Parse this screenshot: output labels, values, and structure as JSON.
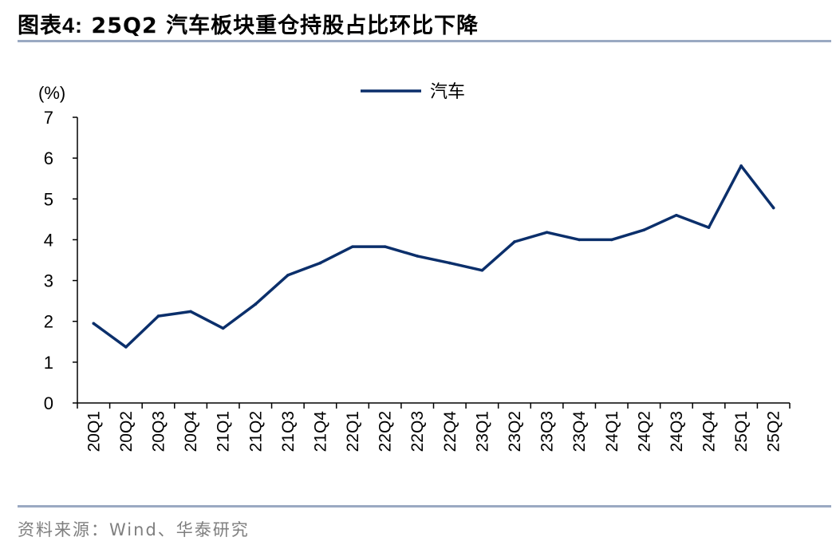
{
  "title": {
    "prefix": "图表",
    "number": "4:",
    "text": "25Q2 汽车板块重仓持股占比环比下降"
  },
  "source": "资料来源：Wind、华泰研究",
  "chart_data": {
    "type": "line",
    "ylabel": "(%)",
    "ylim": [
      0,
      7
    ],
    "yticks": [
      0,
      1,
      2,
      3,
      4,
      5,
      6,
      7
    ],
    "categories": [
      "20Q1",
      "20Q2",
      "20Q3",
      "20Q4",
      "21Q1",
      "21Q2",
      "21Q3",
      "21Q4",
      "22Q1",
      "22Q2",
      "22Q3",
      "22Q4",
      "23Q1",
      "23Q2",
      "23Q3",
      "23Q4",
      "24Q1",
      "24Q2",
      "24Q3",
      "24Q4",
      "25Q1",
      "25Q2"
    ],
    "series": [
      {
        "name": "汽车",
        "color": "#0b2f6b",
        "values": [
          1.95,
          1.37,
          2.13,
          2.24,
          1.83,
          2.42,
          3.13,
          3.43,
          3.83,
          3.83,
          3.6,
          3.43,
          3.25,
          3.95,
          4.18,
          4.0,
          4.0,
          4.24,
          4.6,
          4.3,
          5.81,
          4.78
        ]
      }
    ],
    "grid": false,
    "legend_position": "top-center"
  }
}
